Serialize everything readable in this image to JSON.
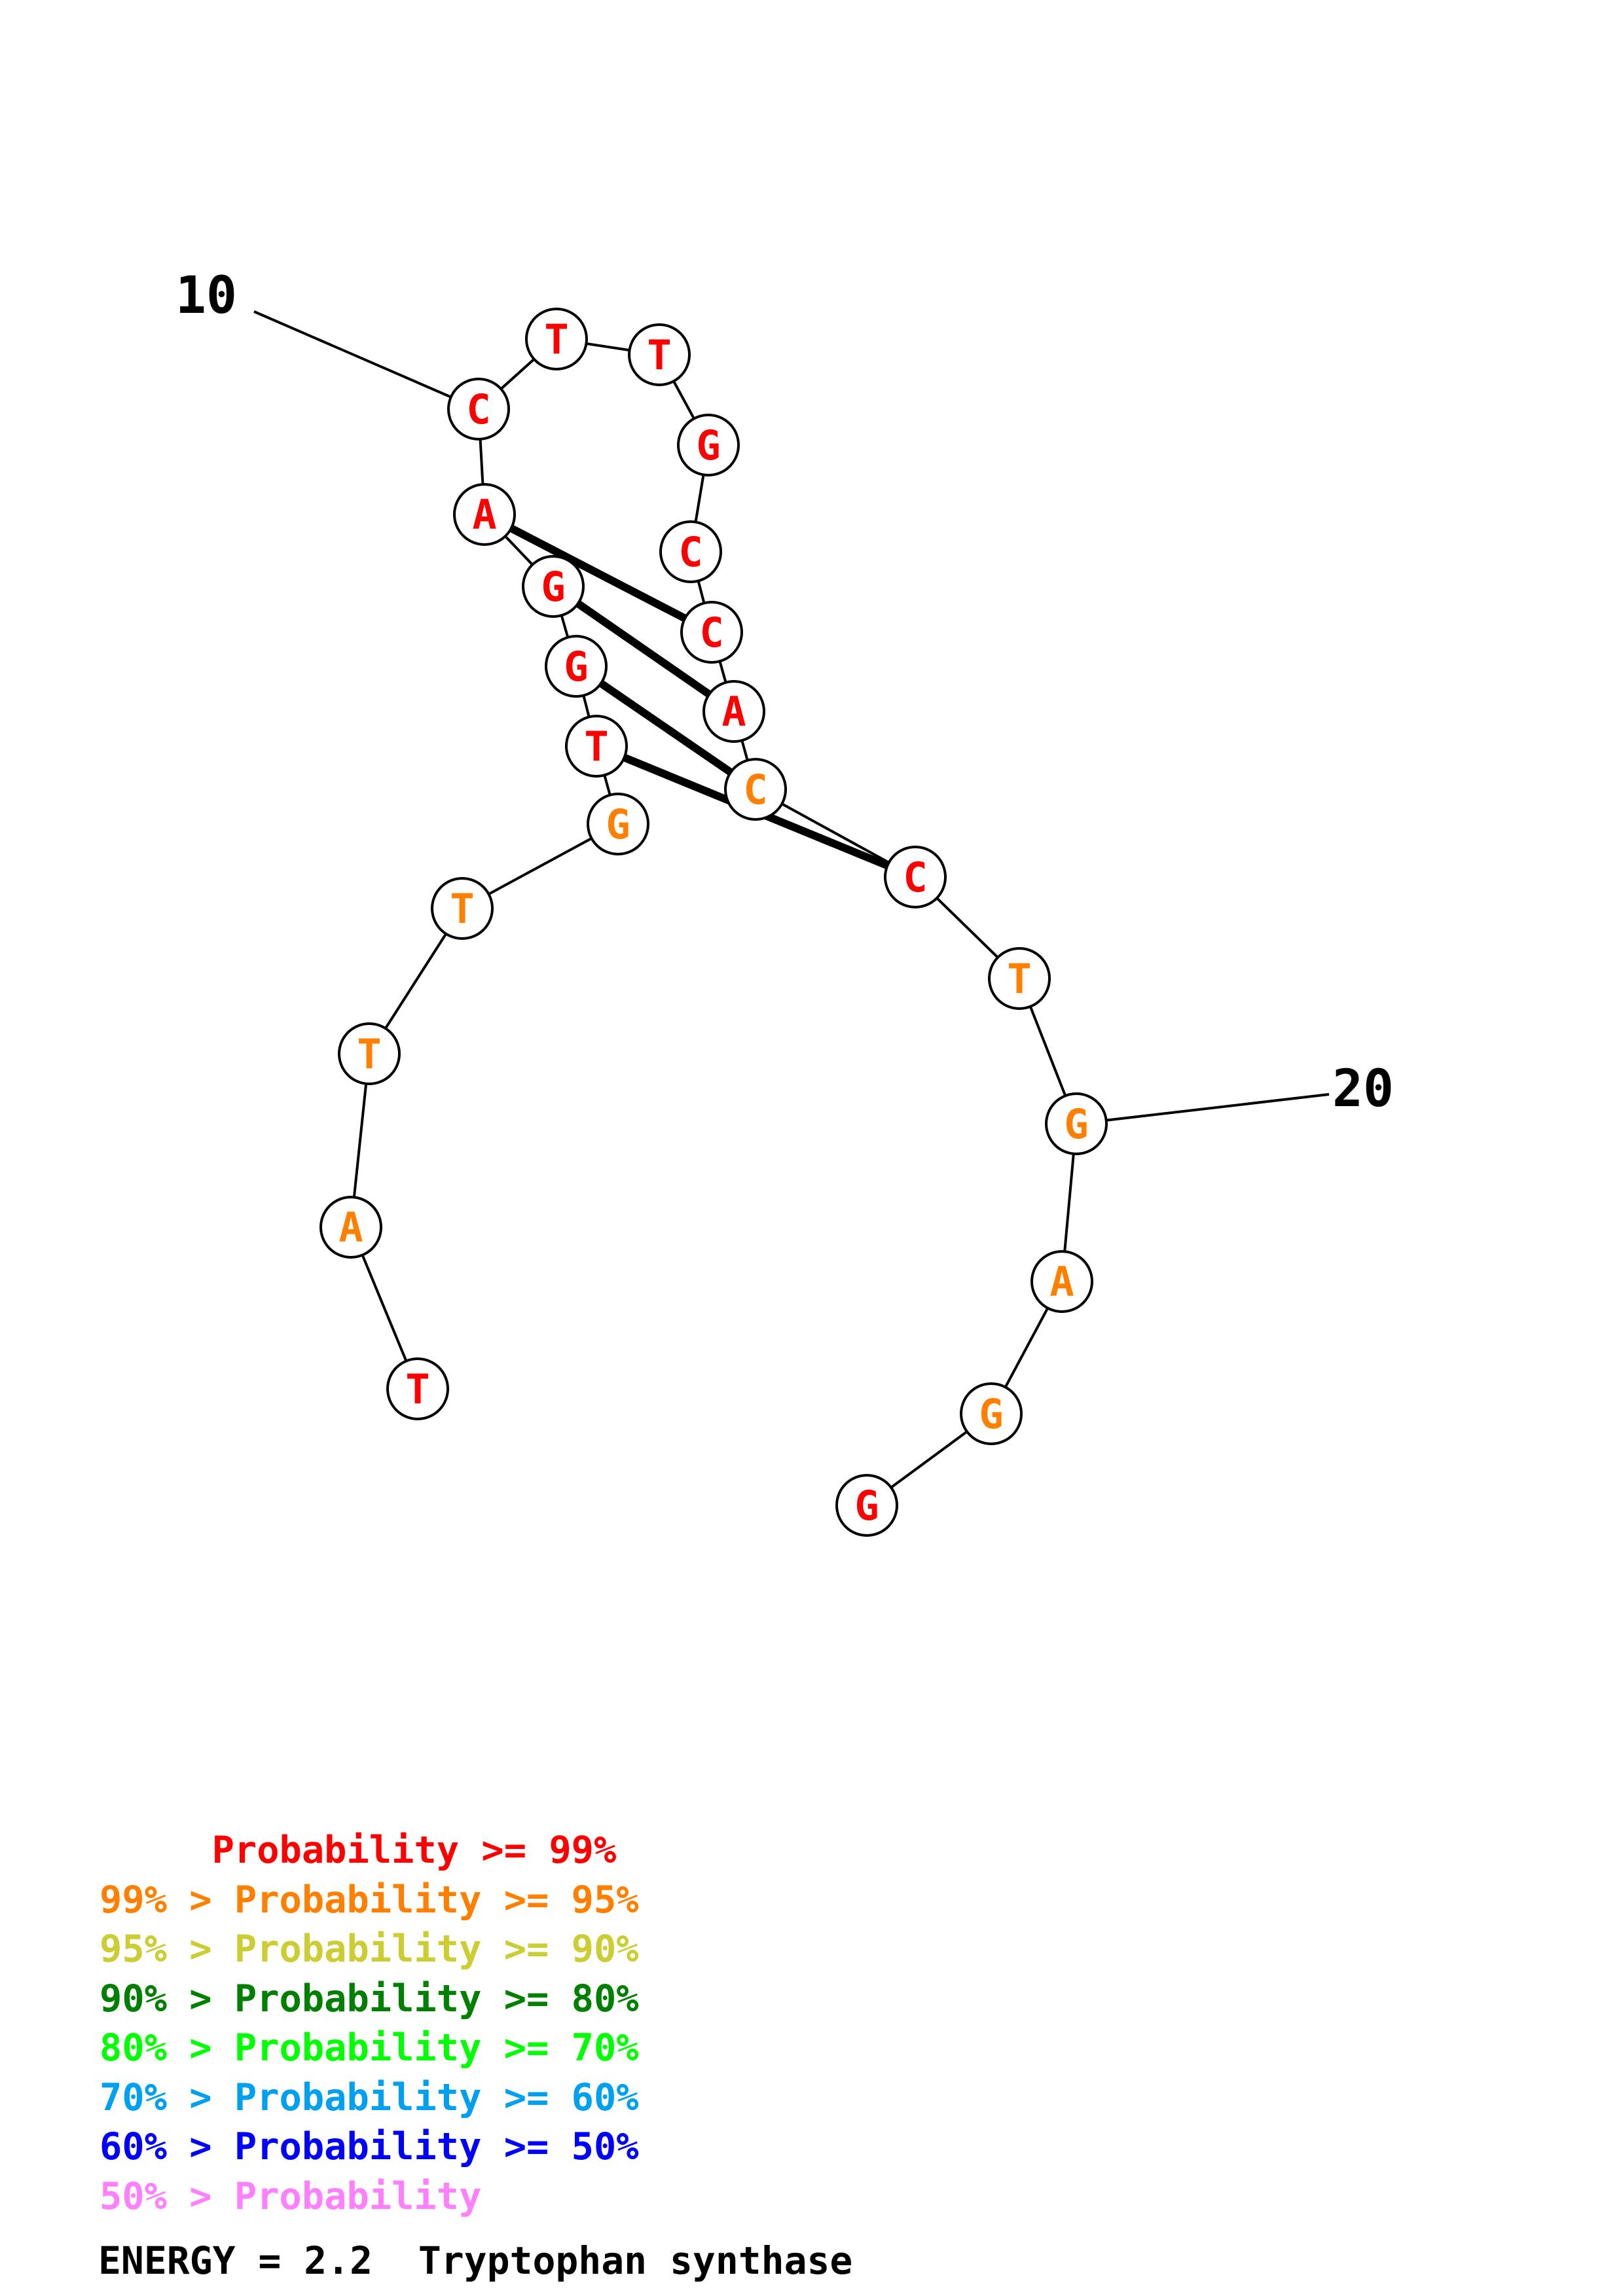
{
  "colors": {
    "p99": "#ff0000",
    "p95": "#ff8000",
    "p90": "#cccc33",
    "p80": "#008000",
    "p70": "#00ff00",
    "p60": "#00a0f0",
    "p50": "#0000ff",
    "below50": "#ff80ff"
  },
  "nucleotides": [
    {
      "base": "T",
      "color": "#ff0000"
    },
    {
      "base": "A",
      "color": "#ff8000"
    },
    {
      "base": "T",
      "color": "#ff8000"
    },
    {
      "base": "T",
      "color": "#ff8000"
    },
    {
      "base": "G",
      "color": "#ff8000"
    },
    {
      "base": "T",
      "color": "#ff0000"
    },
    {
      "base": "G",
      "color": "#ff0000"
    },
    {
      "base": "G",
      "color": "#ff0000"
    },
    {
      "base": "A",
      "color": "#ff0000"
    },
    {
      "base": "C",
      "color": "#ff0000"
    },
    {
      "base": "T",
      "color": "#ff0000"
    },
    {
      "base": "T",
      "color": "#ff0000"
    },
    {
      "base": "G",
      "color": "#ff0000"
    },
    {
      "base": "C",
      "color": "#ff0000"
    },
    {
      "base": "C",
      "color": "#ff0000"
    },
    {
      "base": "A",
      "color": "#ff0000"
    },
    {
      "base": "C",
      "color": "#ff8000"
    },
    {
      "base": "C",
      "color": "#ff0000"
    },
    {
      "base": "T",
      "color": "#ff8000"
    },
    {
      "base": "G",
      "color": "#ff8000"
    },
    {
      "base": "A",
      "color": "#ff8000"
    },
    {
      "base": "G",
      "color": "#ff8000"
    },
    {
      "base": "G",
      "color": "#ff0000"
    }
  ],
  "pairs": [
    [
      5,
      17
    ],
    [
      6,
      16
    ],
    [
      7,
      15
    ],
    [
      8,
      14
    ]
  ],
  "position_labels": [
    {
      "index": 10,
      "text": "10"
    },
    {
      "index": 20,
      "text": "20"
    }
  ],
  "legend": [
    {
      "prefix": "     ",
      "text": "Probability >= 99%",
      "color": "#ff0000"
    },
    {
      "prefix": "",
      "text": "99% > Probability >= 95%",
      "color": "#ff8000"
    },
    {
      "prefix": "",
      "text": "95% > Probability >= 90%",
      "color": "#cccc33"
    },
    {
      "prefix": "",
      "text": "90% > Probability >= 80%",
      "color": "#008000"
    },
    {
      "prefix": "",
      "text": "80% > Probability >= 70%",
      "color": "#00ff00"
    },
    {
      "prefix": "",
      "text": "70% > Probability >= 60%",
      "color": "#00a0f0"
    },
    {
      "prefix": "",
      "text": "60% > Probability >= 50%",
      "color": "#0000ff"
    },
    {
      "prefix": "",
      "text": "50% > Probability",
      "color": "#ff80ff"
    }
  ],
  "footer": {
    "energy": "ENERGY = 2.2",
    "name": "Tryptophan synthase"
  }
}
